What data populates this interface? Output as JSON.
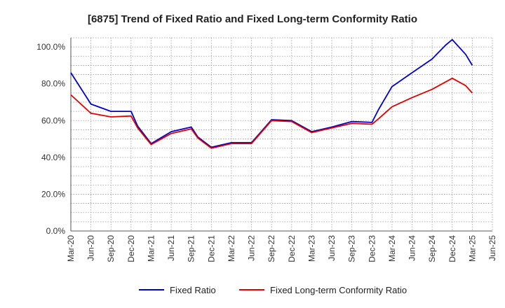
{
  "chart_data": {
    "type": "line",
    "title": "[6875]  Trend of Fixed Ratio and Fixed Long-term Conformity Ratio",
    "xlabel": "",
    "ylabel": "",
    "ylim": [
      0,
      105
    ],
    "y_ticks": [
      0,
      20,
      40,
      60,
      80,
      100
    ],
    "y_tick_labels": [
      "0.0%",
      "20.0%",
      "40.0%",
      "60.0%",
      "80.0%",
      "100.0%"
    ],
    "x_tick_labels": [
      "Mar-20",
      "Jun-20",
      "Sep-20",
      "Dec-20",
      "Mar-21",
      "Jun-21",
      "Sep-21",
      "Dec-21",
      "Mar-22",
      "Jun-22",
      "Sep-22",
      "Dec-22",
      "Mar-23",
      "Jun-23",
      "Sep-23",
      "Dec-23",
      "Mar-24",
      "Jun-24",
      "Sep-24",
      "Dec-24",
      "Mar-25",
      "Jun-25"
    ],
    "grid": true,
    "legend_position": "bottom",
    "series": [
      {
        "name": "Fixed Ratio",
        "color": "#0000cc",
        "points": [
          [
            0,
            86
          ],
          [
            1,
            69
          ],
          [
            2,
            65
          ],
          [
            3,
            65
          ],
          [
            3.33,
            57
          ],
          [
            4,
            47.5
          ],
          [
            5,
            54
          ],
          [
            6,
            56.5
          ],
          [
            6.33,
            51
          ],
          [
            7,
            45.5
          ],
          [
            8,
            48
          ],
          [
            9,
            48
          ],
          [
            10,
            60.5
          ],
          [
            11,
            60
          ],
          [
            12,
            54
          ],
          [
            13,
            56.5
          ],
          [
            14,
            59.5
          ],
          [
            15,
            59
          ],
          [
            15.33,
            66
          ],
          [
            16,
            78.5
          ],
          [
            17,
            86
          ],
          [
            18,
            93.5
          ],
          [
            18.67,
            101
          ],
          [
            19,
            104
          ],
          [
            19.67,
            96
          ],
          [
            20,
            90
          ]
        ]
      },
      {
        "name": "Fixed Long-term Conformity Ratio",
        "color": "#e00000",
        "points": [
          [
            0,
            74
          ],
          [
            1,
            64
          ],
          [
            2,
            62
          ],
          [
            3,
            62.5
          ],
          [
            3.33,
            56
          ],
          [
            4,
            47
          ],
          [
            5,
            53
          ],
          [
            6,
            55.5
          ],
          [
            6.33,
            50.5
          ],
          [
            7,
            45
          ],
          [
            8,
            47.5
          ],
          [
            9,
            47.5
          ],
          [
            10,
            60
          ],
          [
            11,
            59.5
          ],
          [
            12,
            53.5
          ],
          [
            13,
            56
          ],
          [
            14,
            58.5
          ],
          [
            15,
            58
          ],
          [
            15.33,
            61
          ],
          [
            16,
            67.5
          ],
          [
            17,
            72.5
          ],
          [
            18,
            77
          ],
          [
            18.67,
            81
          ],
          [
            19,
            83
          ],
          [
            19.67,
            79
          ],
          [
            20,
            75
          ]
        ]
      }
    ]
  }
}
